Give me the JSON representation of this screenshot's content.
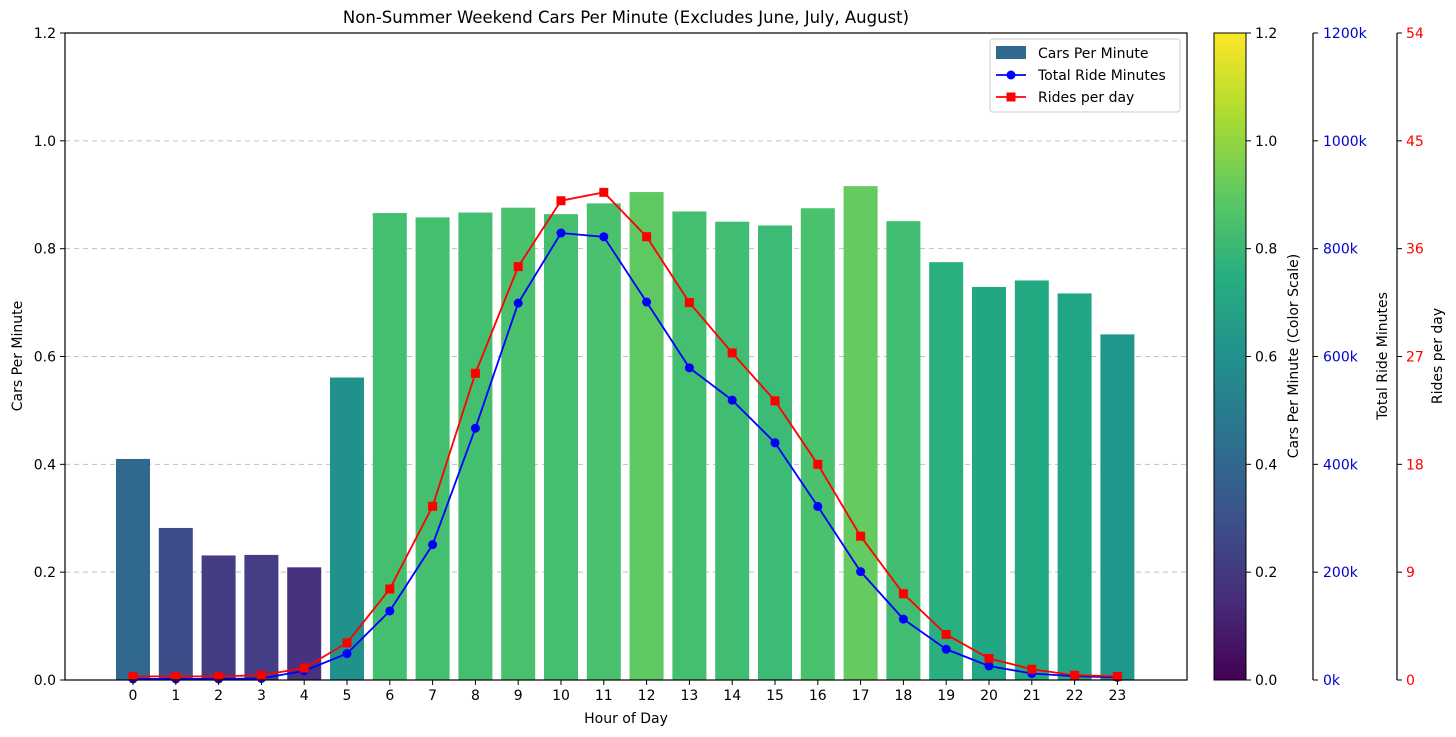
{
  "chart_data": {
    "type": "bar",
    "title": "Non-Summer Weekend Cars Per Minute (Excludes June, July, August)",
    "xlabel": "Hour of Day",
    "ylabel": "Cars Per Minute",
    "categories": [
      "0",
      "1",
      "2",
      "3",
      "4",
      "5",
      "6",
      "7",
      "8",
      "9",
      "10",
      "11",
      "12",
      "13",
      "14",
      "15",
      "16",
      "17",
      "18",
      "19",
      "20",
      "21",
      "22",
      "23"
    ],
    "ylim": [
      0,
      1.2
    ],
    "y_ticks": [
      "0.0",
      "0.2",
      "0.4",
      "0.6",
      "0.8",
      "1.0",
      "1.2"
    ],
    "grid": "horizontal dashed",
    "legend_position": "top-right",
    "series": [
      {
        "name": "Cars Per Minute",
        "type": "bar",
        "axis": "left",
        "legend_color": "#31688e",
        "values": [
          0.41,
          0.282,
          0.231,
          0.232,
          0.209,
          0.561,
          0.866,
          0.858,
          0.867,
          0.876,
          0.864,
          0.884,
          0.905,
          0.869,
          0.85,
          0.843,
          0.875,
          0.916,
          0.851,
          0.775,
          0.729,
          0.741,
          0.717,
          0.641
        ],
        "colors": [
          "#31688e",
          "#3e4c8a",
          "#433d84",
          "#433e85",
          "#46327e",
          "#21918c",
          "#44bf70",
          "#44bf70",
          "#44bf70",
          "#4ac16d",
          "#44bf70",
          "#4ac16d",
          "#5ec962",
          "#44bf70",
          "#40bd72",
          "#3bbb75",
          "#4ac16d",
          "#63cb5f",
          "#40bd72",
          "#2ab07f",
          "#22a785",
          "#24aa83",
          "#21a685",
          "#1f988b"
        ]
      },
      {
        "name": "Total Ride Minutes",
        "type": "line",
        "axis": "right-1",
        "color": "#0000ff",
        "marker": "circle",
        "values": [
          2000,
          2000,
          2000,
          3000,
          17000,
          49000,
          128000,
          251000,
          467000,
          699000,
          829000,
          822000,
          701000,
          579000,
          519000,
          440000,
          322000,
          201000,
          113000,
          57000,
          26000,
          12000,
          7000,
          5000
        ]
      },
      {
        "name": "Rides per day",
        "type": "line",
        "axis": "right-2",
        "color": "#ff0000",
        "marker": "square",
        "values": [
          0.3,
          0.3,
          0.3,
          0.4,
          1.0,
          3.1,
          7.6,
          14.5,
          25.6,
          34.5,
          40.0,
          40.7,
          37.0,
          31.5,
          27.3,
          23.3,
          18.0,
          12.0,
          7.2,
          3.8,
          1.8,
          0.9,
          0.4,
          0.3
        ]
      }
    ],
    "colorbar": {
      "label": "Cars Per Minute (Color Scale)",
      "range": [
        0,
        1.2
      ],
      "ticks": [
        "0.0",
        "0.2",
        "0.4",
        "0.6",
        "0.8",
        "1.0",
        "1.2"
      ],
      "colormap": "viridis"
    },
    "right_axis_1": {
      "label": "Total Ride Minutes",
      "color": "#0000cc",
      "range": [
        0,
        1200000
      ],
      "ticks": [
        "0k",
        "200k",
        "400k",
        "600k",
        "800k",
        "1000k",
        "1200k"
      ]
    },
    "right_axis_2": {
      "label": "Rides per day",
      "color": "#ff0000",
      "range": [
        0,
        54
      ],
      "ticks": [
        "0",
        "9",
        "18",
        "27",
        "36",
        "45",
        "54"
      ]
    }
  }
}
